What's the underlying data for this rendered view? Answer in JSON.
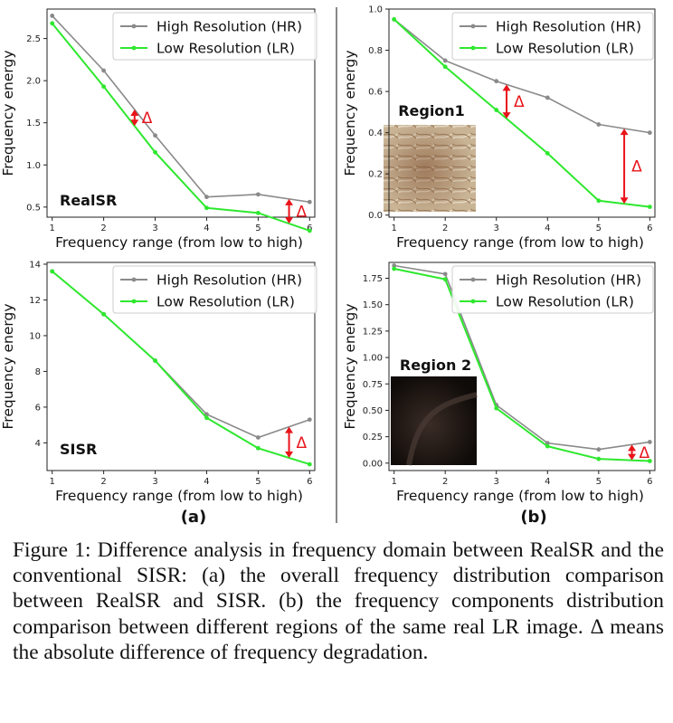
{
  "colors": {
    "hr": "#8a8a8a",
    "lr": "#2ee82e",
    "delta": "#e8141a"
  },
  "legend": {
    "hr_label": "High Resolution (HR)",
    "lr_label": "Low  Resolution (LR)"
  },
  "sublabels": {
    "a": "(a)",
    "b": "(b)"
  },
  "delta_symbol": "Δ",
  "caption": "Figure 1: Difference analysis in frequency domain between RealSR and the conventional SISR: (a) the overall frequency distribution comparison between RealSR and SISR. (b) the frequency components distribution comparison between different regions of the same real LR image. Δ means the absolute difference of frequency degradation.",
  "chart_data": [
    {
      "id": "realsr",
      "type": "line",
      "panel_label": "RealSR",
      "xlabel": "Frequency range (from low to high)",
      "ylabel": "Frequency energy",
      "x": [
        1,
        2,
        3,
        4,
        5,
        6
      ],
      "xlim": [
        0.9,
        6.1
      ],
      "ylim": [
        0.38,
        2.85
      ],
      "yticks": [
        "0.5",
        "1.0",
        "1.5",
        "2.0",
        "2.5"
      ],
      "yticks_num": [
        0.5,
        1.0,
        1.5,
        2.0,
        2.5
      ],
      "series": [
        {
          "name": "High Resolution (HR)",
          "values": [
            2.77,
            2.12,
            1.35,
            0.62,
            0.65,
            0.56
          ]
        },
        {
          "name": "Low  Resolution (LR)",
          "values": [
            2.68,
            1.93,
            1.15,
            0.49,
            0.43,
            0.22
          ]
        }
      ],
      "deltas": [
        {
          "x": 2.6
        },
        {
          "x": 5.6
        }
      ],
      "legend_position": "top-right"
    },
    {
      "id": "region1",
      "type": "line",
      "panel_label": "Region1",
      "xlabel": "Frequency range (from low to high)",
      "ylabel": "Frequency energy",
      "x": [
        1,
        2,
        3,
        4,
        5,
        6
      ],
      "xlim": [
        0.9,
        6.1
      ],
      "ylim": [
        -0.01,
        1.0
      ],
      "yticks": [
        "0.0",
        "0.2",
        "0.4",
        "0.6",
        "0.8",
        "1.0"
      ],
      "yticks_num": [
        0.0,
        0.2,
        0.4,
        0.6,
        0.8,
        1.0
      ],
      "series": [
        {
          "name": "High Resolution (HR)",
          "values": [
            0.95,
            0.75,
            0.65,
            0.57,
            0.44,
            0.4
          ]
        },
        {
          "name": "Low  Resolution (LR)",
          "values": [
            0.95,
            0.72,
            0.51,
            0.3,
            0.07,
            0.04
          ]
        }
      ],
      "deltas": [
        {
          "x": 3.2
        },
        {
          "x": 5.5
        }
      ],
      "legend_position": "top-right"
    },
    {
      "id": "sisr",
      "type": "line",
      "panel_label": "SISR",
      "xlabel": "Frequency range (from low to high)",
      "ylabel": "Frequency energy",
      "x": [
        1,
        2,
        3,
        4,
        5,
        6
      ],
      "xlim": [
        0.9,
        6.1
      ],
      "ylim": [
        2.45,
        14.1
      ],
      "yticks": [
        "4",
        "6",
        "8",
        "10",
        "12",
        "14"
      ],
      "yticks_num": [
        4,
        6,
        8,
        10,
        12,
        14
      ],
      "series": [
        {
          "name": "High Resolution (HR)",
          "values": [
            13.6,
            11.2,
            8.6,
            5.6,
            4.3,
            5.3
          ]
        },
        {
          "name": "Low  Resolution (LR)",
          "values": [
            13.6,
            11.2,
            8.6,
            5.4,
            3.7,
            2.8
          ]
        }
      ],
      "deltas": [
        {
          "x": 5.6
        }
      ],
      "legend_position": "top-right"
    },
    {
      "id": "region2",
      "type": "line",
      "panel_label": "Region 2",
      "xlabel": "Frequency range (from low to high)",
      "ylabel": "Frequency energy",
      "x": [
        1,
        2,
        3,
        4,
        5,
        6
      ],
      "xlim": [
        0.9,
        6.1
      ],
      "ylim": [
        -0.07,
        1.9
      ],
      "yticks": [
        "0.00",
        "0.25",
        "0.50",
        "0.75",
        "1.00",
        "1.25",
        "1.50",
        "1.75"
      ],
      "yticks_num": [
        0.0,
        0.25,
        0.5,
        0.75,
        1.0,
        1.25,
        1.5,
        1.75
      ],
      "series": [
        {
          "name": "High Resolution (HR)",
          "values": [
            1.87,
            1.79,
            0.55,
            0.19,
            0.13,
            0.2
          ]
        },
        {
          "name": "Low  Resolution (LR)",
          "values": [
            1.84,
            1.74,
            0.52,
            0.16,
            0.04,
            0.02
          ]
        }
      ],
      "deltas": [
        {
          "x": 5.65
        }
      ],
      "legend_position": "top-right"
    }
  ]
}
